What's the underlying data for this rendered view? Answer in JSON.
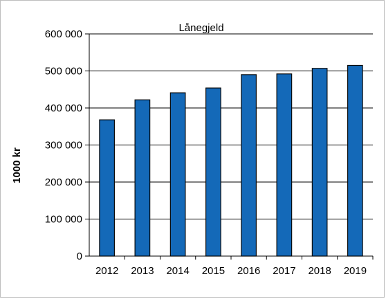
{
  "chart_data": {
    "type": "bar",
    "title": "Lånegjeld",
    "xlabel": "",
    "ylabel": "1000 kr",
    "categories": [
      "2012",
      "2013",
      "2014",
      "2015",
      "2016",
      "2017",
      "2018",
      "2019"
    ],
    "values": [
      368000,
      422000,
      441000,
      454000,
      490000,
      492000,
      507000,
      515000
    ],
    "ylim": [
      0,
      600000
    ],
    "yticks": [
      0,
      100000,
      200000,
      300000,
      400000,
      500000,
      600000
    ],
    "ytick_labels": [
      "0",
      "100 000",
      "200 000",
      "300 000",
      "400 000",
      "500 000",
      "600 000"
    ],
    "grid": true,
    "bar_color": "#1469b8",
    "bar_edge_color": "#0a0a0a"
  }
}
